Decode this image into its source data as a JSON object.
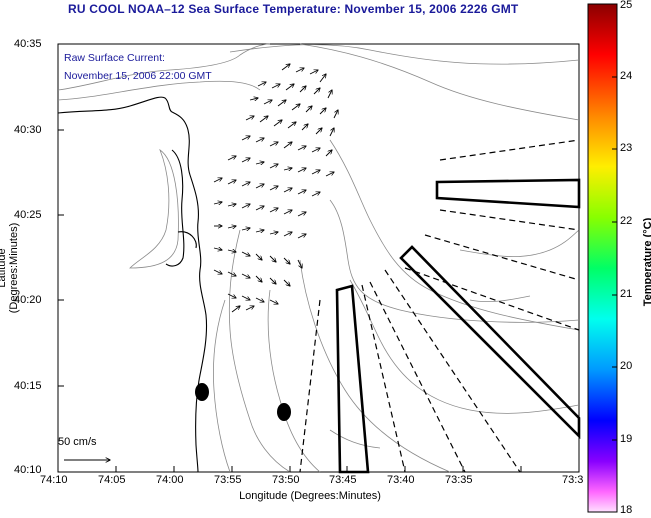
{
  "title": "RU COOL  NOAA–12  Sea Surface Temperature:  November 15, 2006 2226 GMT",
  "overlay": {
    "line1": "Raw Surface Current:",
    "line2": "November 15, 2006 22:00 GMT"
  },
  "axes": {
    "xlabel": "Longitude (Degrees:Minutes)",
    "ylabel": "Latitude (Degrees:Minutes)",
    "xticks": [
      "74:10",
      "74:05",
      "74:00",
      "73:55",
      "73:50",
      "73:45",
      "73:40",
      "73:35",
      "73:3"
    ],
    "yticks": [
      "40:35",
      "40:30",
      "40:25",
      "40:20",
      "40:15",
      "40:10"
    ]
  },
  "colorbar": {
    "title": "Temperature (°C)",
    "ticks": [
      "25",
      "24",
      "23",
      "22",
      "21",
      "20",
      "19",
      "18"
    ],
    "min": 18,
    "max": 25
  },
  "scale": {
    "label": "50 cm/s"
  },
  "colors": {
    "title": "#1a1a9a",
    "contour": "#8a8a8a",
    "coast": "#000000"
  }
}
